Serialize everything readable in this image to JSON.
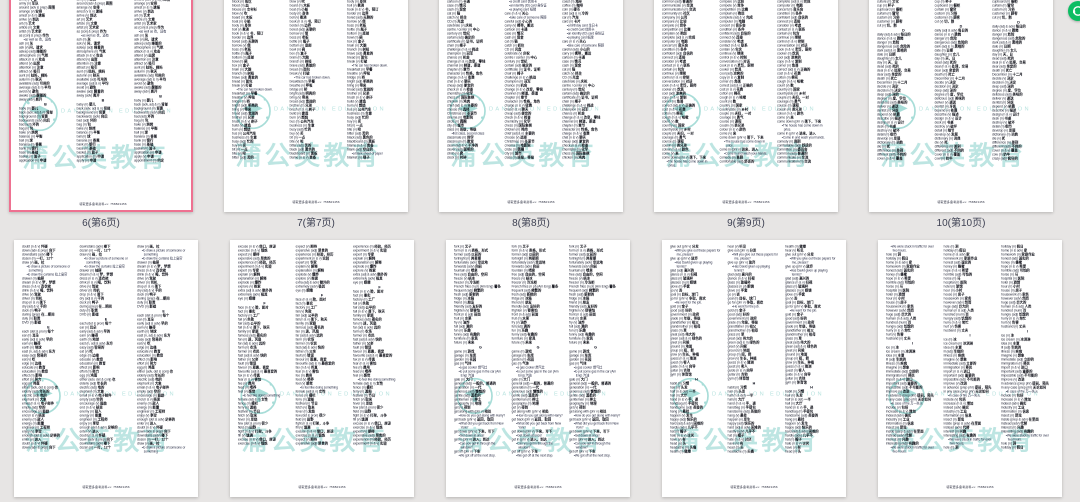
{
  "app": {
    "background_color": "#e7e5e4",
    "selected_border_color": "#ee7191",
    "float_button_color": "#0cbd63"
  },
  "watermark": {
    "brand_en": "DANDELION EDUCATION",
    "brand_cn": "蒲公英教育",
    "color": "#3fb3a9"
  },
  "footer_text": "领取更多备考资料+v: 758823456",
  "pages": [
    {
      "id": "thumb-6",
      "label": "6(第6页)",
      "row": 0,
      "col": 0,
      "selected": true,
      "entries": [
        "application (n) 申请",
        "apply (v) 申请",
        "appointment (n) 约定",
        "approach (n & v) 接近",
        "approve (v) 批准，赞成",
        "architect (n) 建筑师",
        "area (n) 地区，面积",
        "argue (v) 争论",
        "arise (v) 出现",
        "arm (n) 手臂",
        "army (n) 军队",
        "around (adv & prep) 周围",
        "arrange (v) 安排",
        "arrest (v & n) 逮捕",
        "arrive (v) 到达",
        "art (n) 艺术",
        "article (n) 文章",
        "artist (n) 艺术家",
        "as (conj & prep) 作为",
        "•as well as 也，还有",
        "ash (n) 灰",
        "ask (v) 问，请求",
        "asleep (adj) 睡着的",
        "atmosphere (n) 气氛",
        "attack (n & v) 攻击",
        "attend (v) 出席",
        "attention (n) 注意",
        "attract (v) 吸引",
        "aunt (n) 姑妈，姨妈",
        "autumn (n) 秋天",
        "available (adj) 可用的",
        "average (adj & n) 平均",
        "avoid (v) 避免",
        "awake (adj) 醒着的",
        "away (adv) 离开",
        "B",
        "baby (n) 婴儿",
        "back (adv, adj & n) 背部",
        "background (n) 背景",
        "backwards (adv) 向后",
        "bad (adj) 坏的",
        "bag (n) 包",
        "bake (v) 烘烤",
        "balance (n) 平衡",
        "ball (n) 球",
        "banana (n) 香蕉",
        "bank (n) 银行",
        "base (n) 基础",
        "basket (n) 篮子"
      ]
    },
    {
      "id": "thumb-7",
      "label": "7(第7页)",
      "row": 0,
      "col": 1,
      "selected": false,
      "entries": [
        "bit (n) 一点",
        "bite (v) 咬",
        "bitter (adj) 苦的",
        "black (adj) 黑色的",
        "blackboard (n) 黑板",
        "blame (n & v) 责备",
        "blank (adj) 空白的",
        "•a blank sheet of paper",
        "blanket (n) 毯子",
        "blind (adj) 盲的",
        "block (n) 街区",
        "blood (n) 血",
        "blouse (n) 女衬衫",
        "blow (v) 吹",
        "board (n) 木板",
        "boat (n) 小船",
        "body (n) 身体",
        "boil (v) 煮沸",
        "book (n & v) 书，预订",
        "border (n) 边界",
        "bored (adj) 无聊的",
        "borrow (v) 借",
        "boss (n) 老板",
        "bottle (n) 瓶子",
        "bottom (n) 底部",
        "bowl (n) 碗",
        "box (n) 盒子",
        "brain (n) 大脑",
        "branch (n) 树枝",
        "brave (adj) 勇敢的",
        "bread (n) 面包",
        "break (v) 打破",
        "•The car has broken down.",
        "breakfast (n) 早餐",
        "breathe (v) 呼吸",
        "bridge (n) 桥",
        "bright (adj) 明亮的",
        "bring (v) 带来",
        "broad (adj) 宽阔的",
        "brother (n) 兄弟",
        "brush (n & v) 刷子",
        "build (v) 建造",
        "burn (v) 燃烧",
        "bus (n) 公共汽车",
        "business (n) 生意",
        "busy (adj) 忙的",
        "buy (v) 买"
      ]
    },
    {
      "id": "thumb-8",
      "label": "8(第8页)",
      "row": 0,
      "col": 2,
      "selected": false,
      "entries": [
        "car (n) 汽车",
        "card (n) 卡片",
        "•a birthday card 生日卡",
        "•a credit card 信用卡",
        "•an identity (ID) card 身份证",
        "•a playing card 纸牌",
        "care (n & v) 关心",
        "•take care of someone 照顾",
        "careful (adj) 小心的",
        "carry (v) 携带，搬运",
        "cartoon (n) 卡通",
        "case (n) 情况",
        "cash (n) 现金",
        "cat (n) 猫",
        "catch (v) 抓住",
        "CD (n) 光盘",
        "celebrate (v) 庆祝",
        "centre / center (n) 中心",
        "century (n) 世纪",
        "certain (adj) 确定的",
        "certificate (n) 证书，证明",
        "chair (n) 椅子",
        "challenge (n & v) 挑战",
        "champion (n) 冠军",
        "chance (n) 机会",
        "change (n & v) 改变，零钱",
        "channel (n) 频道，渠道",
        "chapter (n) 章节",
        "character (n) 性格，角色",
        "charge (n & v) 收费",
        "chat (n & v) 聊天",
        "cheap (adj) 便宜的",
        "check (n & v) 检查",
        "chemistry (n) 化学",
        "chess (n) 国际象棋",
        "chicken (n) 鸡肉",
        "chief (adj & n) 主要的",
        "choose (v) 选择",
        "Christmas (n) 圣诞节",
        "cinema (n) 电影院",
        "circle (n) 圆圈",
        "city (n) 城市",
        "class (n) 班级，等级",
        "•first class, second class",
        "classmate (n) 同学",
        "classroom (n) 教室",
        "clean (adj & v) 干净的",
        "clever (adj) 聪明的",
        "climb (v) 爬",
        "clock (n) 时钟",
        "clothes (n pl) 衣服",
        "cloud (n) 云",
        "club (n) 俱乐部",
        "coast (n) 海岸",
        "coffee (n) 咖啡",
        "coin (n) 硬币",
        "cold (adj & n) 冷的"
      ]
    },
    {
      "id": "thumb-9",
      "label": "9(第9页)",
      "row": 0,
      "col": 3,
      "selected": false,
      "entries": [
        "colour (n & v) 颜色",
        "come (v) 来",
        "come down (phr v) 落下，下来",
        "•The house has come down in price.",
        "come in (phr v) 进来，进入",
        "•Come in and wash your hands.",
        "comedy (n) 喜剧",
        "comfortable (adj) 舒适的",
        "committee (n) 委员会",
        "common (adj) 普通的",
        "communicate (v) 交流",
        "communication (n) 交流",
        "community (n) 社区",
        "company (n) 公司",
        "compare (v) 比较",
        "compete (v) 竞争",
        "competition (n) 比赛",
        "complain (v) 抱怨",
        "complete (adj & v) 完成",
        "computer (n) 电脑",
        "concert (n) 音乐会",
        "condition (n) 条件",
        "confident (adj) 自信的",
        "connect (v) 连接",
        "consider (v) 考虑",
        "contact (n & v) 联系",
        "contain (v) 包含",
        "continue (v) 继续",
        "control (n & v) 控制",
        "conversation (n) 对话",
        "cook (n & v) 烹饪，厨师",
        "cooker (n) 炊具",
        "cool (adj) 凉爽的",
        "copy (n & v) 复制",
        "corner (n) 角落",
        "correct (adj & v) 正确的",
        "cost (n & v) 花费",
        "cotton (n) 棉花",
        "cough (n & v) 咳嗽",
        "count (v) 数",
        "country (n) 国家",
        "countryside (n) 乡村",
        "couple (n) 夫妇，一对",
        "courage (n) 勇气",
        "course (n) 课程",
        "cousin (n) 表兄弟"
      ]
    },
    {
      "id": "thumb-10",
      "label": "10(第10页)",
      "row": 0,
      "col": 4,
      "selected": false,
      "entries": [
        "cover (n & v) 覆盖",
        "cow (n) 奶牛",
        "crazy (adj) 疯狂的",
        "cream (n) 奶油",
        "create (v) 创造",
        "credit (n) 信用",
        "crime (n) 犯罪",
        "cross (n & v) 穿过",
        "crowd (n) 人群",
        "cry (n & v) 哭，喊",
        "culture (n) 文化",
        "cup (n) 杯子",
        "cupboard (n) 橱柜",
        "curtain (n) 窗帘",
        "custom (n) 习俗",
        "customer (n) 顾客",
        "cut (v) 切，割",
        "D",
        "daily (adj & adv) 每日的",
        "dance (n & v) 跳舞",
        "danger (n) 危险",
        "dangerous (adj) 危险的",
        "dark (adj & n) 黑暗的",
        "date (n) 日期",
        "daughter (n) 女儿",
        "day (n) 天，日",
        "dead (adj) 死的",
        "deal (n & v) 处理，交易",
        "dear (adj) 亲爱的",
        "death (n) 死亡",
        "December (n) 十二月",
        "decide (v) 决定",
        "decision (n) 决定",
        "deep (adj) 深的",
        "degree (n) 度，学位",
        "delicious (adj) 美味的",
        "deliver (v) 递送",
        "dentist (n) 牙医",
        "depend (v) 依靠",
        "describe (v) 描述",
        "design (n & v) 设计",
        "desk (n) 书桌",
        "destroy (v) 破坏",
        "detail (n) 细节",
        "develop (v) 发展",
        "dictionary (n) 词典",
        "die (v) 死",
        "difference (n) 差别",
        "different (adj) 不同的"
      ]
    },
    {
      "id": "thumb-11",
      "label": "",
      "row": 1,
      "col": 0,
      "selected": false,
      "entries": [
        "doubt (n & v) 怀疑",
        "down (adv & prep) 向下",
        "downstairs (adv) 楼下",
        "dozen (n) 一打，12个",
        "draw (v) 画，拉",
        "•to draw a picture of someone or something",
        "•to draw the curtains 拉上窗帘",
        "drawer (n) 抽屉",
        "dream (n & v) 梦，梦想",
        "dress (n & v) 连衣裙",
        "drink (n & v) 喝，饮料",
        "drive (v) 驾驶",
        "driver (n) 司机",
        "drop (n & v) 落下",
        "dry (adj & v) 干的",
        "duck (n) 鸭子",
        "during (prep) 在…期间",
        "duty (n) 职责",
        "DVD (n) 影碟",
        "E",
        "each (det & pron) 每个",
        "ear (n) 耳朵",
        "early (adj & adv) 早的",
        "earn (v) 赚得",
        "earth (n) 地球",
        "east (n, adj & adv) 东方",
        "easy (adj) 容易的",
        "eat (v) 吃",
        "edge (n) 边缘",
        "educate (v) 教育",
        "education (n) 教育",
        "effect (n) 影响",
        "effort (n) 努力",
        "egg (n) 鸡蛋",
        "either (adv, det & conj) 也",
        "elderly (adj) 年长的",
        "electric (adj) 电的",
        "elephant (n) 大象",
        "email (n & v) 电子邮件",
        "empty (adj) 空的",
        "encourage (v) 鼓励",
        "end (n & v) 结束",
        "enemy (n) 敌人",
        "energy (n) 能量",
        "engineer (n) 工程师",
        "enjoy (v) 享受",
        "enough (det & adv) 足够的",
        "enter (v) 进入"
      ]
    },
    {
      "id": "thumb-12",
      "label": "",
      "row": 1,
      "col": 1,
      "selected": false,
      "entries": [
        "excuse (n & v) 借口，原谅",
        "exercise (n & v) 锻炼",
        "expect (v) 期待",
        "expensive (adj) 昂贵的",
        "experience (n) 经验，经历",
        "experiment (n & v) 实验",
        "expert (n) 专家",
        "explain (v) 解释",
        "explanation (n) 解释",
        "explode (v) 爆炸",
        "explore (v) 探索",
        "extra (adj & adv) 额外的",
        "extremely (adv) 极其",
        "eye (n) 眼睛",
        "F",
        "face (n & v) 脸，面对",
        "fact (n) 事实",
        "factory (n) 工厂",
        "fail (v) 失败",
        "fair (adj) 公平的",
        "fall (n & v) 落下，秋天",
        "family (n) 家庭",
        "famous (adj) 著名的",
        "fan (n) 迷，风扇",
        "far (adj & adv) 远的",
        "farm (n) 农场",
        "farmer (n) 农民",
        "fast (adj & adv) 快的",
        "father (n) 父亲",
        "fault (n) 错误",
        "favour (n) 恩惠，喜爱",
        "favourite (adj & n) 最喜爱的",
        "fax (n & v) 传真",
        "fear (n & v) 害怕",
        "fee (n) 费用",
        "feed (v) 喂养",
        "feel (v) 感觉",
        "•to feel like doing something",
        "female (adj & n) 女性",
        "fence (n) 栅栏",
        "ferry (n) 渡船",
        "festival (n) 节日",
        "fetch (v) 取来",
        "fever (n) 发烧",
        "few (det & pron) 很少",
        "field (n) 田野",
        "fight (n & v) 打架，斗争",
        "fill (v) 填满"
      ]
    },
    {
      "id": "thumb-13",
      "label": "",
      "row": 1,
      "col": 2,
      "selected": false,
      "entries": [
        "fork (n) 叉子",
        "form (n & v) 表格，形式",
        "former (adj) 以前的",
        "fortnight (n) 两星期",
        "fortunately (adv) 幸运地",
        "forwards (adv) 向前",
        "fountain (n) 喷泉",
        "free (adj) 自由的，空闲",
        "freeze (v) 结冰",
        "freezer (n) 冷冻柜",
        "French fries (n pl) (Am Eng) 薯条",
        "frequent (adj) 频繁的",
        "fresh (adj) 新鲜的",
        "fridge (n) 冰箱",
        "friend (n) 朋友",
        "friendly (adj) 友好的",
        "frighten (v) 使害怕",
        "front (n & adj) 前面",
        "fruit (n) 水果",
        "fry (v) 油炸",
        "full (adj) 满的",
        "fun (n) 乐趣",
        "funny (adj) 有趣的",
        "furniture (n) 家具",
        "future (n) 未来",
        "G",
        "game (n) 游戏",
        "garage (n) 车库",
        "garden (n) 花园",
        "gas (n) 气体",
        "•a gas cooker 燃气灶",
        "•to put some gas in the car (Am Eng) 汽油",
        "gate (n) 大门",
        "general (adj) 一般的，普通的",
        "generation (n) 一代",
        "generous (adj) 慷慨的",
        "gentle (adj) 温柔的",
        "gentleman (n) 绅士",
        "geography (n) 地理",
        "get (v) 得到",
        "get along with (phr v) 相处",
        "•How do you get along with Harry?",
        "get back (phr v) 返回，取回",
        "•What did you get back from New York?",
        "get down (phr v) 下来，写下",
        "•Get down at once!",
        "get in (phr v) 进入，到达",
        "•Can you get in through the window?",
        "get off (phr v) 下车",
        "•We got off at the next stop."
      ]
    },
    {
      "id": "thumb-14",
      "label": "",
      "row": 1,
      "col": 3,
      "selected": false,
      "entries": [
        "give out (phr v) 分发",
        "•Will you give out these papers for me, please?",
        "give up (phr v) 放弃",
        "•Has David given up playing tennis?",
        "glad (adj) 高兴的",
        "glance (n & v) 扫视",
        "glass (n) 玻璃杯",
        "glasses (n pl) 眼镜",
        "glove (n) 手套",
        "go (v) 去",
        "goal (n) 目标，球门",
        "go for (phr v) 争取，喜欢",
        "•He went for the job.",
        "gold (n) 金子",
        "good (adj) 好的",
        "government (n) 政府",
        "grade (n) 年级，等级",
        "grandfather (n) 祖父",
        "grandmother (n) 祖母",
        "grass (n) 草",
        "great (adj) 伟大的",
        "green (adj & n) 绿色的",
        "greet (v) 问候",
        "ground (n) 地面",
        "group (n) 组，群",
        "grow (v) 生长，种植",
        "guess (n & v) 猜测",
        "guest (n) 客人",
        "guide (n & v) 向导",
        "guitar (n) 吉他",
        "gym (n) 体育馆",
        "H",
        "habit (n) 习惯",
        "hair (n) 头发",
        "half (n & det) 一半",
        "hall (n) 大厅",
        "hand (n & v) 手，递",
        "handbag (n) 手提包",
        "handsome (adj) 英俊的",
        "hang (v) 悬挂",
        "happen (v) 发生",
        "happy (adj) 快乐的",
        "hard (adj & adv) 困难的",
        "hardly (adv) 几乎不",
        "hat (n) 帽子",
        "hate (n & v) 讨厌",
        "have (v) 有",
        "head (n) 头",
        "headache (n) 头痛",
        "health (n) 健康",
        "hear (v) 听见"
      ]
    },
    {
      "id": "thumb-15",
      "label": "",
      "row": 1,
      "col": 4,
      "selected": false,
      "entries": [
        "•We were stuck in traffic for over two hours.",
        "hole (n) 洞",
        "holiday (n) 假日",
        "home (n & adv) 家",
        "homework (n) 家庭作业",
        "honest (adj) 诚实的",
        "honey (n) 蜂蜜",
        "hope (n & v) 希望",
        "horrible (adj) 可怕的",
        "horse (n) 马",
        "hospital (n) 医院",
        "hotel (n) 旅馆",
        "hour (n) 小时",
        "house (n) 房子",
        "housework (n) 家务",
        "however (adv) 然而",
        "huge (adj) 巨大的",
        "human (n & adj) 人类",
        "hundred (num) 百",
        "hungry (adj) 饥饿的",
        "hurry (n & v) 匆忙",
        "hurt (v) 伤害",
        "husband (n) 丈夫",
        "I",
        "ice (n) 冰",
        "ice cream (n) 冰淇淋",
        "idea (n) 主意",
        "ill (adj) 生病的",
        "illness (n) 疾病",
        "imagine (v) 想象",
        "immediate (adj) 立即的",
        "immigration (n) 移民",
        "import (n & v) 进口",
        "important (adj) 重要的",
        "impossible (adj) 不可能的",
        "improve (v) 改进",
        "in advance (prep phr) 提前，预先",
        "in any case (prep phr) 无论如何",
        "•in case of fire 万一失火",
        "include (v) 包括",
        "increase (n & v) 增加",
        "indeed (adv) 确实",
        "industry (n) 工业",
        "information (n) 信息",
        "insect (n) 昆虫",
        "inside (prep & adv) 在里面",
        "instead (adv) 代替",
        "interest (n) 兴趣",
        "interesting (adj) 有趣的"
      ]
    }
  ]
}
